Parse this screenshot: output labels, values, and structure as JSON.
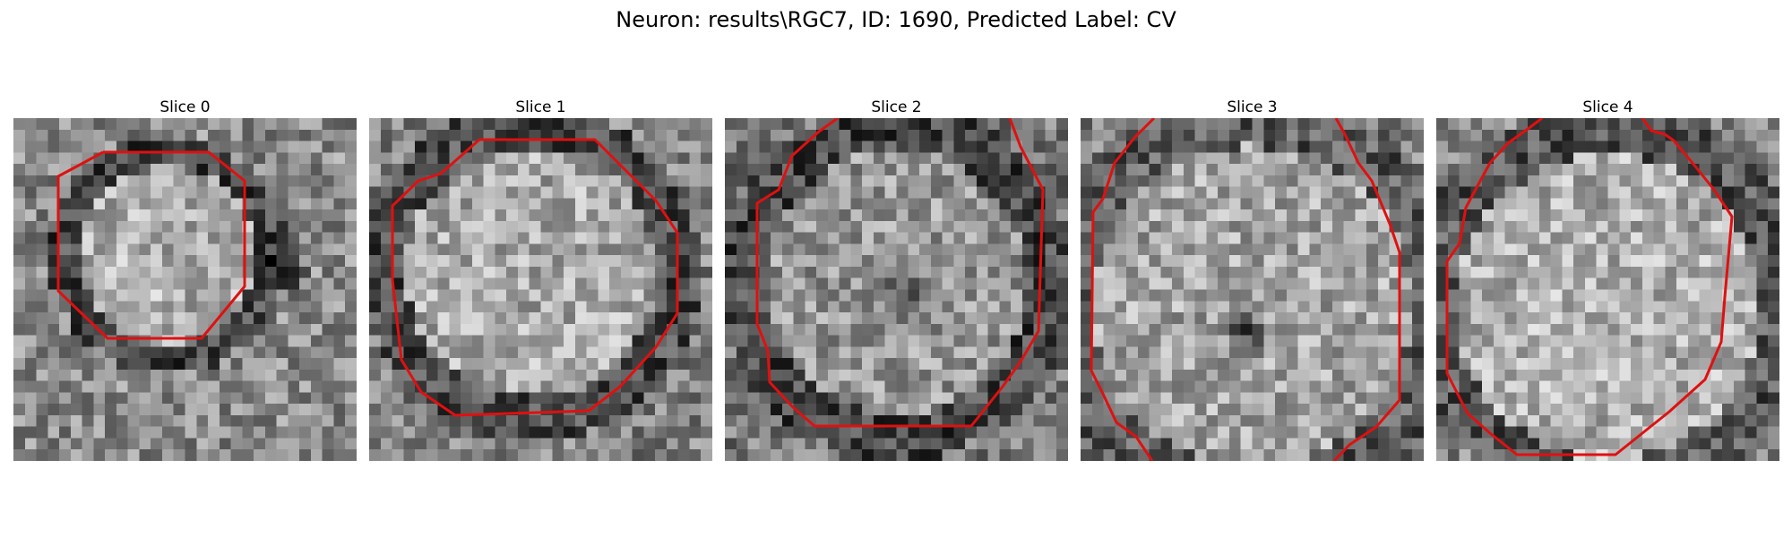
{
  "title": "Neuron: results\\RGC7, ID: 1690, Predicted Label: CV",
  "contour_color": "#e01010",
  "panels": [
    {
      "label": "Slice 0"
    },
    {
      "label": "Slice 1"
    },
    {
      "label": "Slice 2"
    },
    {
      "label": "Slice 3"
    },
    {
      "label": "Slice 4"
    }
  ]
}
